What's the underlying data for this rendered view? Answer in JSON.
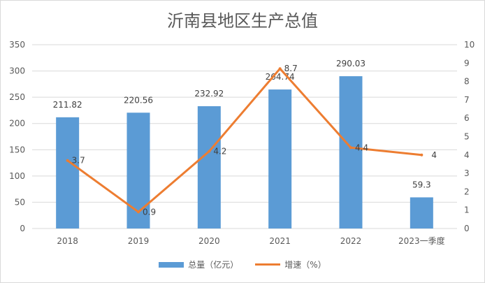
{
  "chart_data": {
    "type": "bar+line",
    "title": "沂南县地区生产总值",
    "categories": [
      "2018",
      "2019",
      "2020",
      "2021",
      "2022",
      "2023一季度"
    ],
    "series": [
      {
        "name": "总量（亿元）",
        "type": "bar",
        "axis": "left",
        "values": [
          211.82,
          220.56,
          232.92,
          264.74,
          290.03,
          59.3
        ],
        "labels": [
          "211.82",
          "220.56",
          "232.92",
          "264.74",
          "290.03",
          "59.3"
        ]
      },
      {
        "name": "增速（%）",
        "type": "line",
        "axis": "right",
        "values": [
          3.7,
          0.9,
          4.2,
          8.7,
          4.4,
          4
        ],
        "labels": [
          "3.7",
          "0.9",
          "4.2",
          "8.7",
          "4.4",
          "4"
        ]
      }
    ],
    "y_left": {
      "min": 0,
      "max": 350,
      "step": 50
    },
    "y_right": {
      "min": 0,
      "max": 10,
      "step": 1
    },
    "grid": true,
    "legend": "bottom",
    "colors": {
      "bar": "#5b9bd5",
      "line": "#ed7d31",
      "grid": "#d9d9d9",
      "text": "#595959"
    }
  }
}
